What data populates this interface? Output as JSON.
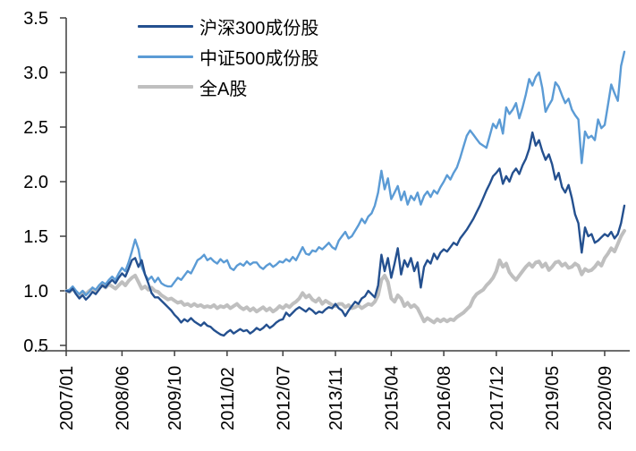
{
  "figure": {
    "background": "#ffffff",
    "axis_color": "#3f3f3f"
  },
  "chart_data": {
    "type": "line",
    "title": "",
    "xlabel": "",
    "ylabel": "",
    "grid": false,
    "legend_position": "top-left-inside",
    "y_axis": {
      "min": 0.5,
      "max": 3.5,
      "tick_labels": [
        "0.5",
        "1.0",
        "1.5",
        "2.0",
        "2.5",
        "3.0",
        "3.5"
      ]
    },
    "x_axis": {
      "unit": "monthly points from 2007/01, series extends ~6 months past last tick",
      "tick_labels": [
        {
          "label": "2007/01",
          "index": 0
        },
        {
          "label": "2008/06",
          "index": 17
        },
        {
          "label": "2009/10",
          "index": 33
        },
        {
          "label": "2011/02",
          "index": 49
        },
        {
          "label": "2012/07",
          "index": 66
        },
        {
          "label": "2013/11",
          "index": 82
        },
        {
          "label": "2015/04",
          "index": 99
        },
        {
          "label": "2016/08",
          "index": 115
        },
        {
          "label": "2017/12",
          "index": 131
        },
        {
          "label": "2019/05",
          "index": 148
        },
        {
          "label": "2020/09",
          "index": 164
        }
      ]
    },
    "series": [
      {
        "name": "沪深300成份股",
        "color": "#24508f",
        "line_width": 2.4,
        "values": [
          1.0,
          0.99,
          1.02,
          0.97,
          0.93,
          0.96,
          0.92,
          0.95,
          0.99,
          0.97,
          1.01,
          1.05,
          1.03,
          1.07,
          1.1,
          1.07,
          1.12,
          1.16,
          1.13,
          1.2,
          1.28,
          1.3,
          1.22,
          1.28,
          1.15,
          1.07,
          0.98,
          0.94,
          0.94,
          0.91,
          0.88,
          0.85,
          0.82,
          0.78,
          0.75,
          0.71,
          0.74,
          0.72,
          0.75,
          0.72,
          0.7,
          0.68,
          0.71,
          0.68,
          0.67,
          0.64,
          0.62,
          0.6,
          0.59,
          0.62,
          0.64,
          0.61,
          0.63,
          0.65,
          0.63,
          0.64,
          0.61,
          0.63,
          0.66,
          0.64,
          0.66,
          0.69,
          0.66,
          0.68,
          0.71,
          0.73,
          0.74,
          0.8,
          0.77,
          0.8,
          0.83,
          0.85,
          0.83,
          0.81,
          0.84,
          0.82,
          0.79,
          0.81,
          0.8,
          0.83,
          0.85,
          0.84,
          0.88,
          0.84,
          0.82,
          0.77,
          0.82,
          0.86,
          0.9,
          0.88,
          0.93,
          0.95,
          1.0,
          0.97,
          0.94,
          1.05,
          1.33,
          1.18,
          1.3,
          1.12,
          1.25,
          1.39,
          1.15,
          1.28,
          1.22,
          1.3,
          1.18,
          1.26,
          1.03,
          1.22,
          1.28,
          1.25,
          1.34,
          1.29,
          1.35,
          1.38,
          1.36,
          1.4,
          1.44,
          1.42,
          1.48,
          1.52,
          1.56,
          1.61,
          1.66,
          1.72,
          1.78,
          1.85,
          1.92,
          1.98,
          2.05,
          2.08,
          2.12,
          1.98,
          2.05,
          2.0,
          2.08,
          2.12,
          2.07,
          2.15,
          2.21,
          2.3,
          2.45,
          2.33,
          2.38,
          2.28,
          2.2,
          2.25,
          2.16,
          2.02,
          2.08,
          1.95,
          1.9,
          1.97,
          1.85,
          1.7,
          1.62,
          1.35,
          1.58,
          1.5,
          1.52,
          1.44,
          1.46,
          1.49,
          1.52,
          1.5,
          1.54,
          1.48,
          1.52,
          1.62,
          1.78
        ]
      },
      {
        "name": "中证500成份股",
        "color": "#5b9bd5",
        "line_width": 2.4,
        "values": [
          1.0,
          1.01,
          1.04,
          1.0,
          0.97,
          1.0,
          0.96,
          0.99,
          1.03,
          1.01,
          1.05,
          1.08,
          1.06,
          1.1,
          1.13,
          1.1,
          1.16,
          1.21,
          1.18,
          1.26,
          1.36,
          1.47,
          1.38,
          1.22,
          1.15,
          1.1,
          1.13,
          1.08,
          1.12,
          1.07,
          1.05,
          1.04,
          1.04,
          1.08,
          1.12,
          1.1,
          1.14,
          1.18,
          1.16,
          1.22,
          1.28,
          1.3,
          1.33,
          1.28,
          1.3,
          1.27,
          1.25,
          1.29,
          1.26,
          1.28,
          1.21,
          1.19,
          1.23,
          1.25,
          1.23,
          1.27,
          1.24,
          1.26,
          1.26,
          1.22,
          1.2,
          1.23,
          1.25,
          1.22,
          1.24,
          1.27,
          1.26,
          1.29,
          1.27,
          1.31,
          1.28,
          1.34,
          1.4,
          1.34,
          1.33,
          1.37,
          1.36,
          1.4,
          1.38,
          1.41,
          1.44,
          1.4,
          1.38,
          1.46,
          1.5,
          1.54,
          1.48,
          1.5,
          1.55,
          1.6,
          1.66,
          1.62,
          1.68,
          1.71,
          1.78,
          1.9,
          2.1,
          1.93,
          2.03,
          1.84,
          1.9,
          1.96,
          1.83,
          1.91,
          1.79,
          1.87,
          1.83,
          1.9,
          1.79,
          1.87,
          1.91,
          1.86,
          1.92,
          1.89,
          1.95,
          2.0,
          2.06,
          2.02,
          2.08,
          2.13,
          2.22,
          2.32,
          2.42,
          2.47,
          2.43,
          2.39,
          2.35,
          2.33,
          2.31,
          2.42,
          2.53,
          2.49,
          2.57,
          2.44,
          2.68,
          2.62,
          2.66,
          2.72,
          2.58,
          2.68,
          2.8,
          2.94,
          2.88,
          2.96,
          3.0,
          2.86,
          2.64,
          2.7,
          2.75,
          2.91,
          2.87,
          2.79,
          2.72,
          2.76,
          2.66,
          2.61,
          2.57,
          2.17,
          2.46,
          2.4,
          2.42,
          2.38,
          2.57,
          2.49,
          2.52,
          2.7,
          2.89,
          2.81,
          2.74,
          3.06,
          3.19
        ]
      },
      {
        "name": "全A股",
        "color": "#bfbfbf",
        "line_width": 4,
        "values": [
          1.0,
          0.99,
          1.02,
          0.99,
          0.96,
          0.99,
          0.97,
          1.0,
          1.02,
          1.0,
          1.03,
          1.05,
          1.03,
          1.06,
          1.04,
          1.02,
          1.05,
          1.08,
          1.05,
          1.09,
          1.12,
          1.14,
          1.08,
          1.02,
          1.04,
          1.01,
          1.03,
          1.0,
          0.99,
          0.96,
          0.94,
          0.92,
          0.93,
          0.91,
          0.89,
          0.9,
          0.87,
          0.88,
          0.86,
          0.88,
          0.86,
          0.87,
          0.85,
          0.86,
          0.85,
          0.87,
          0.84,
          0.86,
          0.85,
          0.87,
          0.84,
          0.86,
          0.88,
          0.85,
          0.83,
          0.85,
          0.82,
          0.84,
          0.81,
          0.83,
          0.85,
          0.82,
          0.84,
          0.81,
          0.83,
          0.86,
          0.84,
          0.87,
          0.85,
          0.88,
          0.9,
          0.93,
          0.98,
          0.94,
          0.96,
          0.92,
          0.9,
          0.93,
          0.88,
          0.91,
          0.89,
          0.87,
          0.86,
          0.88,
          0.88,
          0.85,
          0.87,
          0.84,
          0.85,
          0.87,
          0.84,
          0.86,
          0.88,
          0.87,
          0.9,
          0.96,
          1.1,
          1.14,
          1.08,
          0.93,
          0.9,
          0.96,
          0.93,
          0.86,
          0.89,
          0.85,
          0.87,
          0.84,
          0.78,
          0.72,
          0.75,
          0.73,
          0.71,
          0.74,
          0.72,
          0.74,
          0.72,
          0.74,
          0.73,
          0.76,
          0.78,
          0.8,
          0.83,
          0.86,
          0.93,
          0.97,
          0.99,
          1.01,
          1.05,
          1.08,
          1.12,
          1.18,
          1.28,
          1.22,
          1.25,
          1.17,
          1.13,
          1.1,
          1.14,
          1.18,
          1.22,
          1.25,
          1.22,
          1.26,
          1.27,
          1.22,
          1.25,
          1.19,
          1.22,
          1.26,
          1.27,
          1.23,
          1.25,
          1.21,
          1.22,
          1.25,
          1.23,
          1.15,
          1.2,
          1.18,
          1.19,
          1.22,
          1.26,
          1.23,
          1.3,
          1.34,
          1.39,
          1.36,
          1.43,
          1.5,
          1.55
        ]
      }
    ]
  }
}
